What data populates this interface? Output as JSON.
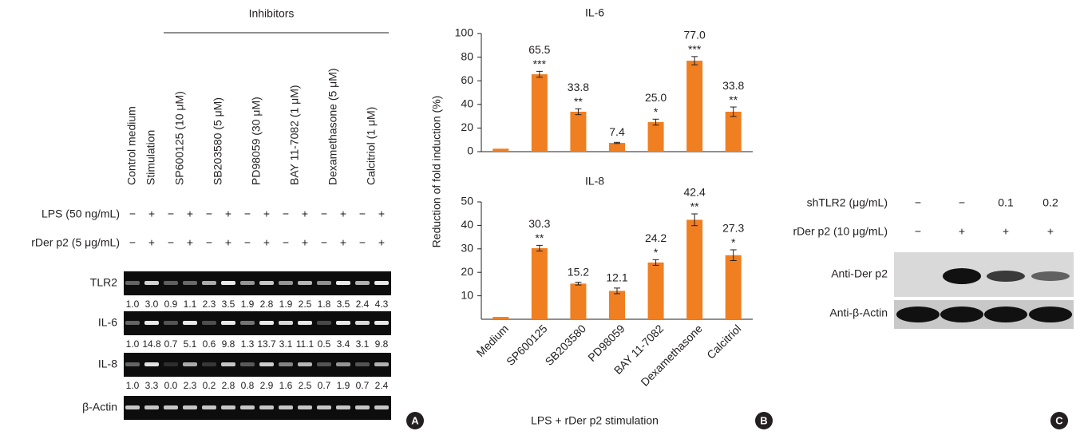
{
  "panel_a": {
    "letter": "A",
    "inhibitors_label": "Inhibitors",
    "lane_labels": [
      "Control medium",
      "Stimulation",
      "SP600125 (10 μM)",
      "SB203580 (5 μM)",
      "PD98059 (30 μM)",
      "BAY 11-7082 (1 μM)",
      "Dexamethasone (5 μM)",
      "Calcitriol (1 μM)"
    ],
    "treatment_rows": [
      {
        "label": "LPS (50 ng/mL)",
        "marks": [
          "−",
          "+",
          "−",
          "+",
          "−",
          "+",
          "−",
          "+",
          "−",
          "+",
          "−",
          "+",
          "−",
          "+"
        ]
      },
      {
        "label": "rDer p2 (5 μg/mL)",
        "marks": [
          "−",
          "+",
          "−",
          "+",
          "−",
          "+",
          "−",
          "+",
          "−",
          "+",
          "−",
          "+",
          "−",
          "+"
        ]
      }
    ],
    "gels": [
      {
        "label": "TLR2",
        "values": [
          "1.0",
          "3.0",
          "0.9",
          "1.1",
          "2.3",
          "3.5",
          "1.9",
          "2.8",
          "1.9",
          "2.5",
          "1.8",
          "3.5",
          "2.4",
          "4.3"
        ]
      },
      {
        "label": "IL-6",
        "values": [
          "1.0",
          "14.8",
          "0.7",
          "5.1",
          "0.6",
          "9.8",
          "1.3",
          "13.7",
          "3.1",
          "11.1",
          "0.5",
          "3.4",
          "3.1",
          "9.8"
        ]
      },
      {
        "label": "IL-8",
        "values": [
          "1.0",
          "3.3",
          "0.0",
          "2.3",
          "0.2",
          "2.8",
          "0.8",
          "2.9",
          "1.6",
          "2.5",
          "0.7",
          "1.9",
          "0.7",
          "2.4"
        ]
      },
      {
        "label": "β-Actin"
      }
    ]
  },
  "panel_b": {
    "letter": "B"
  },
  "chart_data": [
    {
      "type": "bar",
      "title": "IL-6",
      "ylabel": "Reduction of fold induction (%)",
      "values": [
        2.5,
        65.5,
        33.8,
        7.4,
        25.0,
        77.0,
        33.8
      ],
      "value_labels": [
        null,
        "65.5",
        "33.8",
        "7.4",
        "25.0",
        "77.0",
        "33.8"
      ],
      "errors": [
        0,
        2.5,
        2.5,
        0.5,
        2.5,
        3.5,
        4
      ],
      "annotations": [
        null,
        "***",
        "**",
        null,
        "*",
        "***",
        "**"
      ],
      "color": "#f07f22",
      "ylim": [
        0,
        100
      ],
      "yticks": [
        0,
        20,
        40,
        60,
        80,
        100
      ]
    },
    {
      "type": "bar",
      "title": "IL-8",
      "categories": [
        "Medium",
        "SP600125",
        "SB203580",
        "PD98059",
        "BAY 11-7082",
        "Dexamethasone",
        "Calcitriol"
      ],
      "xlabel": "LPS + rDer p2 stimulation",
      "values": [
        1,
        30.3,
        15.2,
        12.1,
        24.2,
        42.4,
        27.3
      ],
      "value_labels": [
        null,
        "30.3",
        "15.2",
        "12.1",
        "24.2",
        "42.4",
        "27.3"
      ],
      "errors": [
        0,
        1.2,
        0.6,
        1.2,
        1.2,
        2.5,
        2.3
      ],
      "annotations": [
        null,
        "**",
        null,
        null,
        "*",
        "**",
        "*"
      ],
      "color": "#f07f22",
      "ylim": [
        0,
        50
      ],
      "yticks": [
        10,
        20,
        30,
        40,
        50
      ]
    }
  ],
  "panel_c": {
    "letter": "C",
    "rows": [
      {
        "label": "shTLR2 (μg/mL)",
        "marks": [
          "−",
          "−",
          "0.1",
          "0.2"
        ]
      },
      {
        "label": "rDer p2 (10 μg/mL)",
        "marks": [
          "−",
          "+",
          "+",
          "+"
        ]
      }
    ],
    "blots": [
      {
        "label": "Anti-Der p2"
      },
      {
        "label": "Anti-β-Actin"
      }
    ]
  }
}
